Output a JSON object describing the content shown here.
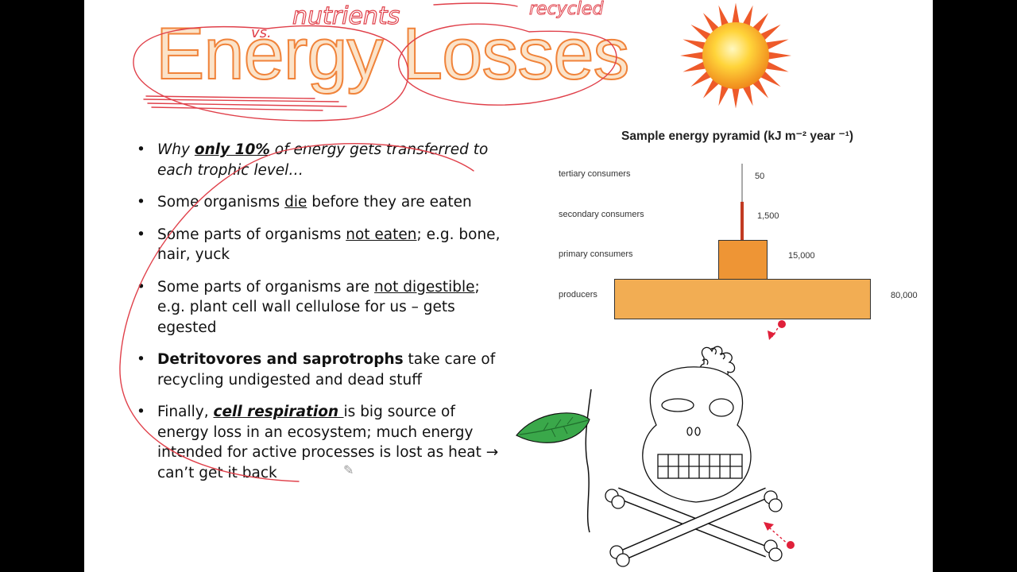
{
  "slide": {
    "title": "Energy Losses",
    "bullets": [
      {
        "parts": [
          {
            "t": "Why ",
            "c": "i"
          },
          {
            "t": "only 10%",
            "c": "i b u"
          },
          {
            "t": " of energy gets transferred to each trophic level…",
            "c": "i"
          }
        ]
      },
      {
        "parts": [
          {
            "t": "Some organisms ",
            "c": ""
          },
          {
            "t": "die",
            "c": "u"
          },
          {
            "t": " before they are eaten",
            "c": ""
          }
        ]
      },
      {
        "parts": [
          {
            "t": "Some parts of organisms ",
            "c": ""
          },
          {
            "t": "not eaten",
            "c": "u"
          },
          {
            "t": "; e.g. bone, hair, yuck",
            "c": ""
          }
        ]
      },
      {
        "parts": [
          {
            "t": "Some parts of organisms are ",
            "c": ""
          },
          {
            "t": "not digestible",
            "c": "u"
          },
          {
            "t": "; e.g. plant cell wall cellulose for us – gets egested",
            "c": ""
          }
        ]
      },
      {
        "parts": [
          {
            "t": "Detritovores  and saprotrophs",
            "c": "b"
          },
          {
            "t": " take care of recycling undigested and dead stuff",
            "c": ""
          }
        ]
      },
      {
        "parts": [
          {
            "t": "Finally, ",
            "c": ""
          },
          {
            "t": "cell respiration ",
            "c": "i b u"
          },
          {
            "t": " is big source of energy loss in an ecosystem; much energy intended for active processes is lost as heat → can’t get it back",
            "c": ""
          }
        ]
      }
    ]
  },
  "pyramid": {
    "title": "Sample energy pyramid (kJ m⁻² year ⁻¹)",
    "levels": [
      {
        "label": "tertiary consumers",
        "value": "50"
      },
      {
        "label": "secondary consumers",
        "value": "1,500"
      },
      {
        "label": "primary consumers",
        "value": "15,000"
      },
      {
        "label": "producers",
        "value": "80,000"
      }
    ]
  },
  "annotations": {
    "word_vs": "vs.",
    "word_nutrients": "nutrients",
    "word_recycled": "recycled"
  },
  "colors": {
    "title_outline": "#f0833a",
    "ink": "#e0404a",
    "producers": "#f2ad53",
    "primary": "#ee9535",
    "secondary": "#c23a22",
    "sun_rays": "#ee5a2a",
    "leaf": "#3aa84a"
  },
  "icons": [
    "sun-icon",
    "leaf-icon",
    "skull-crossbones-icon",
    "pencil-cursor-icon"
  ]
}
